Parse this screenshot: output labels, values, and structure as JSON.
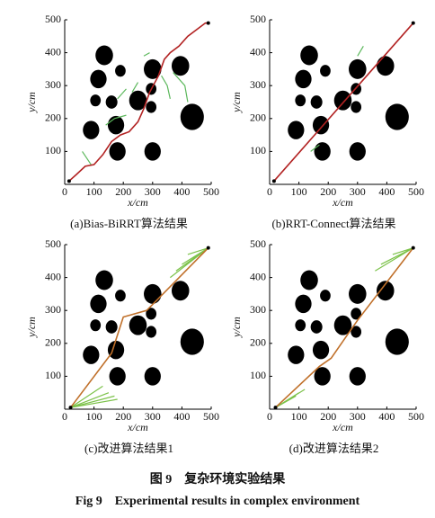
{
  "chart_data": [
    {
      "type": "line",
      "title": "(a)Bias-BiRRT算法结果",
      "x_label": "x/cm",
      "y_label": "y/cm",
      "xlim": [
        0,
        500
      ],
      "ylim": [
        0,
        500
      ],
      "xticks": [
        0,
        100,
        200,
        300,
        400,
        500
      ],
      "yticks": [
        100,
        200,
        300,
        400,
        500
      ],
      "obstacles": {
        "x": [
          135,
          115,
          190,
          300,
          395,
          105,
          160,
          250,
          295,
          175,
          295,
          435,
          90,
          180,
          300
        ],
        "y": [
          392,
          320,
          345,
          350,
          360,
          255,
          250,
          255,
          290,
          180,
          235,
          205,
          165,
          100,
          100
        ],
        "r": [
          30,
          28,
          18,
          30,
          30,
          18,
          20,
          30,
          18,
          28,
          18,
          40,
          28,
          28,
          28
        ]
      },
      "series": [
        {
          "color": "#5cb85c",
          "x": [
            60,
            90,
            null,
            140,
            170,
            210,
            null,
            230,
            250,
            null,
            330,
            350,
            360,
            null,
            370,
            410,
            420,
            null,
            180,
            210,
            null,
            270,
            290
          ],
          "values": [
            100,
            60,
            null,
            180,
            200,
            210,
            null,
            280,
            310,
            null,
            330,
            300,
            260,
            null,
            340,
            300,
            250,
            null,
            260,
            290,
            null,
            390,
            400
          ]
        },
        {
          "color": "#b22222",
          "x": [
            15,
            40,
            70,
            100,
            130,
            160,
            190,
            220,
            250,
            270,
            290,
            320,
            340,
            360,
            390,
            420,
            450,
            480,
            490
          ],
          "values": [
            10,
            30,
            55,
            60,
            90,
            130,
            150,
            160,
            190,
            230,
            280,
            330,
            380,
            400,
            420,
            450,
            470,
            490,
            490
          ]
        }
      ]
    },
    {
      "type": "line",
      "title": "(b)RRT-Connect算法结果",
      "x_label": "x/cm",
      "y_label": "y/cm",
      "xlim": [
        0,
        500
      ],
      "ylim": [
        0,
        500
      ],
      "xticks": [
        0,
        100,
        200,
        300,
        400,
        500
      ],
      "yticks": [
        100,
        200,
        300,
        400,
        500
      ],
      "obstacles": {
        "x": [
          135,
          115,
          190,
          300,
          395,
          105,
          160,
          250,
          295,
          175,
          295,
          435,
          90,
          180,
          300
        ],
        "y": [
          392,
          320,
          345,
          350,
          360,
          255,
          250,
          255,
          290,
          180,
          235,
          205,
          165,
          100,
          100
        ],
        "r": [
          30,
          28,
          18,
          30,
          30,
          18,
          20,
          30,
          18,
          28,
          18,
          40,
          28,
          28,
          28
        ]
      },
      "series": [
        {
          "color": "#5cb85c",
          "x": [
            140,
            170,
            null,
            300,
            320
          ],
          "values": [
            100,
            120,
            null,
            390,
            420
          ]
        },
        {
          "color": "#b22222",
          "x": [
            15,
            490
          ],
          "values": [
            10,
            490
          ]
        }
      ]
    },
    {
      "type": "line",
      "title": "(c)改进算法结果1",
      "x_label": "x/cm",
      "y_label": "y/cm",
      "xlim": [
        0,
        500
      ],
      "ylim": [
        0,
        500
      ],
      "xticks": [
        0,
        100,
        200,
        300,
        400,
        500
      ],
      "yticks": [
        100,
        200,
        300,
        400,
        500
      ],
      "obstacles": {
        "x": [
          135,
          115,
          190,
          300,
          395,
          105,
          160,
          250,
          295,
          175,
          295,
          435,
          90,
          180,
          300
        ],
        "y": [
          392,
          320,
          345,
          350,
          360,
          255,
          250,
          255,
          290,
          180,
          235,
          205,
          165,
          100,
          100
        ],
        "r": [
          30,
          28,
          18,
          30,
          30,
          18,
          20,
          30,
          18,
          28,
          18,
          40,
          28,
          28,
          28
        ]
      },
      "series": [
        {
          "color": "#7cc24a",
          "x": [
            20,
            150,
            null,
            20,
            170,
            null,
            20,
            130,
            null,
            20,
            180,
            null,
            490,
            380,
            null,
            490,
            400,
            null,
            490,
            360,
            null,
            490,
            420
          ],
          "values": [
            5,
            50,
            null,
            5,
            40,
            null,
            5,
            70,
            null,
            5,
            30,
            null,
            490,
            420,
            null,
            490,
            440,
            null,
            490,
            400,
            null,
            490,
            470
          ]
        },
        {
          "color": "#c0702a",
          "x": [
            20,
            160,
            200,
            280,
            490
          ],
          "values": [
            5,
            170,
            280,
            300,
            490
          ]
        }
      ]
    },
    {
      "type": "line",
      "title": "(d)改进算法结果2",
      "x_label": "x/cm",
      "y_label": "y/cm",
      "xlim": [
        0,
        500
      ],
      "ylim": [
        0,
        500
      ],
      "xticks": [
        0,
        100,
        200,
        300,
        400,
        500
      ],
      "yticks": [
        100,
        200,
        300,
        400,
        500
      ],
      "obstacles": {
        "x": [
          135,
          115,
          190,
          300,
          395,
          105,
          160,
          250,
          295,
          175,
          295,
          435,
          90,
          180,
          300
        ],
        "y": [
          392,
          320,
          345,
          350,
          360,
          255,
          250,
          255,
          290,
          180,
          235,
          205,
          165,
          100,
          100
        ],
        "r": [
          30,
          28,
          18,
          30,
          30,
          18,
          20,
          30,
          18,
          28,
          18,
          40,
          28,
          28,
          28
        ]
      },
      "series": [
        {
          "color": "#7cc24a",
          "x": [
            20,
            120,
            null,
            20,
            100,
            null,
            20,
            90,
            null,
            490,
            360,
            null,
            490,
            380,
            null,
            490,
            420
          ],
          "values": [
            5,
            60,
            null,
            5,
            50,
            null,
            5,
            40,
            null,
            490,
            420,
            null,
            490,
            440,
            null,
            490,
            470
          ]
        },
        {
          "color": "#c0702a",
          "x": [
            20,
            170,
            210,
            300,
            490
          ],
          "values": [
            5,
            130,
            155,
            270,
            490
          ]
        }
      ]
    }
  ],
  "caption_zh": "图 9　复杂环境实验结果",
  "caption_en": "Fig 9　Experimental results in complex environment"
}
